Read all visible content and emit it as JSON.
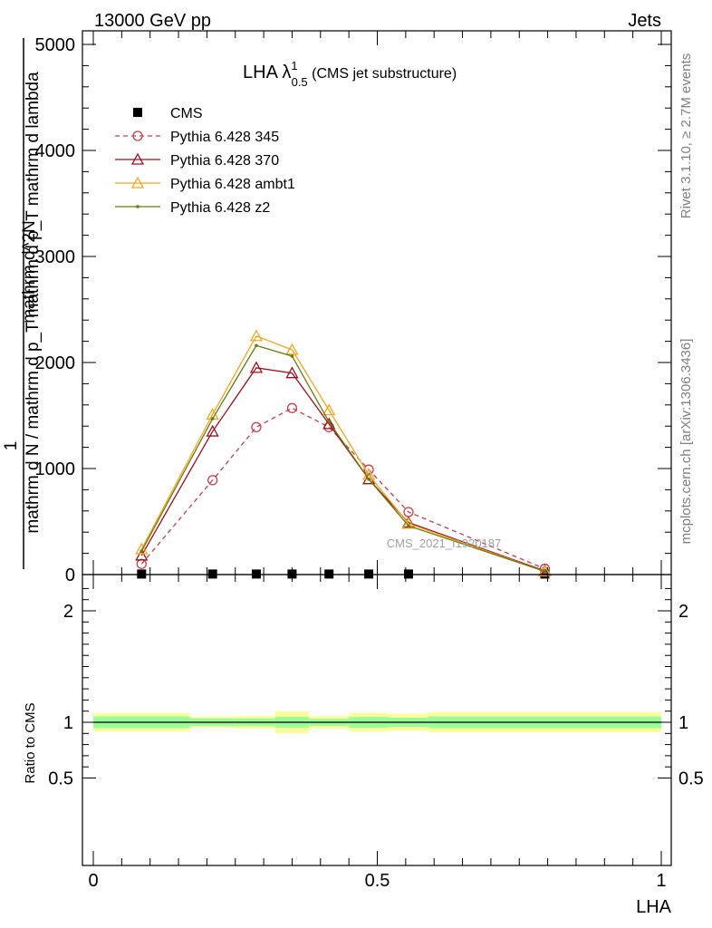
{
  "header": {
    "left": "13000 GeV pp",
    "right": "Jets"
  },
  "side_labels": {
    "rivet": "Rivet 3.1.10, ≥ 2.7M events",
    "mcplots": "mcplots.cern.ch [arXiv:1306.3436]"
  },
  "main_title": {
    "prefix": "LHA λ",
    "sup": "1",
    "sub": "0.5",
    "suffix": " (CMS jet substructure)"
  },
  "watermark": "CMS_2021_I1920187",
  "y_label": {
    "numerator": "1",
    "denominator": "mathrm d N / mathrm d p_T mathrm d p_T mathrm d lambda",
    "top": "mathrm d^2N"
  },
  "ratio_ylabel": "Ratio to CMS",
  "xlabel": "LHA",
  "chart_data": [
    {
      "type": "line",
      "panel": "main",
      "xlim": [
        0,
        1
      ],
      "ylim": [
        0,
        5100
      ],
      "y_ticks": [
        0,
        1000,
        2000,
        3000,
        4000,
        5000
      ],
      "y_tick_labels": [
        "0",
        "1000",
        "2000",
        "3000",
        "4000",
        "5000"
      ],
      "x_ticks": [
        0,
        0.5,
        1
      ],
      "x_tick_labels": [
        "0",
        "0.5",
        "1"
      ],
      "legend_position": "top-left",
      "series": [
        {
          "name": "CMS",
          "marker": "square",
          "color": "#000000",
          "x": [
            0.085,
            0.21,
            0.287,
            0.35,
            0.415,
            0.485,
            0.555,
            0.795
          ],
          "y": [
            5,
            5,
            5,
            5,
            5,
            5,
            5,
            5
          ]
        },
        {
          "name": "Pythia 6.428 345",
          "marker": "circle",
          "dashed": true,
          "color": "#c04050",
          "x": [
            0.085,
            0.21,
            0.287,
            0.35,
            0.415,
            0.485,
            0.555,
            0.795
          ],
          "y": [
            100,
            890,
            1390,
            1570,
            1390,
            990,
            590,
            55
          ]
        },
        {
          "name": "Pythia 6.428 370",
          "marker": "triangle",
          "color": "#9b1020",
          "x": [
            0.085,
            0.21,
            0.287,
            0.35,
            0.415,
            0.485,
            0.555,
            0.795
          ],
          "y": [
            180,
            1350,
            1950,
            1900,
            1420,
            900,
            490,
            35
          ]
        },
        {
          "name": "Pythia 6.428 ambt1",
          "marker": "triangle",
          "color": "#f0a820",
          "x": [
            0.085,
            0.21,
            0.287,
            0.35,
            0.415,
            0.485,
            0.555,
            0.795
          ],
          "y": [
            240,
            1510,
            2250,
            2120,
            1550,
            940,
            480,
            30
          ]
        },
        {
          "name": "Pythia 6.428 z2",
          "marker": "dot",
          "color": "#6b7a10",
          "x": [
            0.085,
            0.21,
            0.287,
            0.35,
            0.415,
            0.485,
            0.555,
            0.795
          ],
          "y": [
            220,
            1470,
            2160,
            2060,
            1440,
            900,
            460,
            30
          ]
        }
      ]
    },
    {
      "type": "area",
      "panel": "ratio",
      "xlim": [
        0,
        1
      ],
      "ylim": [
        0.4,
        2.3
      ],
      "y_ticks": [
        0.5,
        1,
        2
      ],
      "y_tick_labels": [
        "0.5",
        "1",
        "2"
      ],
      "x_ticks": [
        0,
        0.5,
        1
      ],
      "x_tick_labels": [
        "0",
        "0.5",
        "1"
      ],
      "reference_line": 1,
      "bins": [
        {
          "x0": 0.0,
          "x1": 0.17,
          "inner": [
            0.947,
            1.053
          ],
          "outer": [
            0.917,
            1.083
          ]
        },
        {
          "x0": 0.17,
          "x1": 0.25,
          "inner": [
            0.966,
            1.035
          ],
          "outer": [
            0.952,
            1.049
          ]
        },
        {
          "x0": 0.25,
          "x1": 0.32,
          "inner": [
            0.966,
            1.035
          ],
          "outer": [
            0.944,
            1.056
          ]
        },
        {
          "x0": 0.32,
          "x1": 0.38,
          "inner": [
            0.952,
            1.048
          ],
          "outer": [
            0.903,
            1.098
          ]
        },
        {
          "x0": 0.38,
          "x1": 0.45,
          "inner": [
            0.968,
            1.032
          ],
          "outer": [
            0.944,
            1.056
          ]
        },
        {
          "x0": 0.45,
          "x1": 0.52,
          "inner": [
            0.952,
            1.048
          ],
          "outer": [
            0.917,
            1.083
          ]
        },
        {
          "x0": 0.52,
          "x1": 0.59,
          "inner": [
            0.959,
            1.041
          ],
          "outer": [
            0.924,
            1.076
          ]
        },
        {
          "x0": 0.59,
          "x1": 1.0,
          "inner": [
            0.947,
            1.053
          ],
          "outer": [
            0.91,
            1.09
          ]
        }
      ]
    }
  ]
}
